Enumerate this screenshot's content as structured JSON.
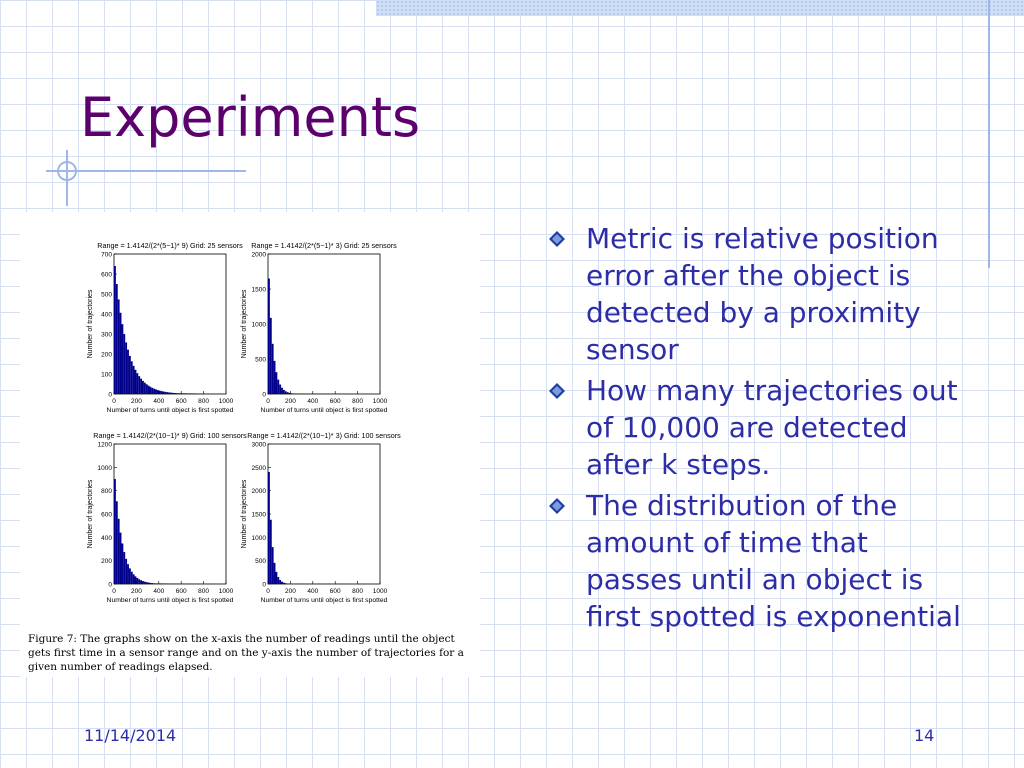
{
  "slide": {
    "title": "Experiments",
    "bullets": [
      "Metric is relative position error after the object is detected by a proximity sensor",
      "How many trajectories out of 10,000 are detected after k steps.",
      "The distribution of the amount of time that passes until an object is first spotted is exponential"
    ],
    "date": "11/14/2014",
    "page_number": "14",
    "colors": {
      "title": "#5c006c",
      "text": "#2d2da8",
      "bars": "#00008b",
      "grid_lines": "#d7dff2"
    }
  },
  "figure": {
    "caption": "Figure 7: The graphs show on the x-axis the number of readings until the object gets first time in a sensor range and on the y-axis the number of trajectories for a given number of readings elapsed."
  },
  "chart_data": [
    {
      "type": "bar",
      "title": "Range = 1.4142/(2*(5−1)* 9) Grid: 25 sensors",
      "xlabel": "Number of turns until object is first spotted",
      "ylabel": "Number of trajectories",
      "xlim": [
        0,
        1000
      ],
      "ylim": [
        0,
        700
      ],
      "xticks": [
        "0",
        "200",
        "400",
        "600",
        "800",
        "1000"
      ],
      "yticks": [
        "0",
        "100",
        "200",
        "300",
        "400",
        "500",
        "600",
        "700"
      ],
      "series": [
        {
          "peak": 640,
          "decay_turns": 110,
          "tail": 8
        }
      ]
    },
    {
      "type": "bar",
      "title": "Range = 1.4142/(2*(5−1)* 3) Grid: 25 sensors",
      "xlabel": "Number of turns until object is first spotted",
      "ylabel": "Number of trajectories",
      "xlim": [
        0,
        1000
      ],
      "ylim": [
        0,
        2000
      ],
      "xticks": [
        "0",
        "200",
        "400",
        "600",
        "800",
        "1000"
      ],
      "yticks": [
        "0",
        "500",
        "1000",
        "1500",
        "2000"
      ],
      "series": [
        {
          "peak": 1650,
          "decay_turns": 40,
          "tail": 10
        }
      ]
    },
    {
      "type": "bar",
      "title": "Range = 1.4142/(2*(10−1)* 9) Grid: 100 sensors",
      "xlabel": "Number of turns until object is first spotted",
      "ylabel": "Number of trajectories",
      "xlim": [
        0,
        1000
      ],
      "ylim": [
        0,
        1200
      ],
      "xticks": [
        "0",
        "200",
        "400",
        "600",
        "800",
        "1000"
      ],
      "yticks": [
        "0",
        "200",
        "400",
        "600",
        "800",
        "1000",
        "1200"
      ],
      "series": [
        {
          "peak": 900,
          "decay_turns": 70,
          "tail": 8
        }
      ]
    },
    {
      "type": "bar",
      "title": "Range = 1.4142/(2*(10−1)* 3) Grid: 100 sensors",
      "xlabel": "Number of turns until object is first spotted",
      "ylabel": "Number of trajectories",
      "xlim": [
        0,
        1000
      ],
      "ylim": [
        0,
        3000
      ],
      "xticks": [
        "0",
        "200",
        "400",
        "600",
        "800",
        "1000"
      ],
      "yticks": [
        "0",
        "500",
        "1000",
        "1500",
        "2000",
        "2500",
        "3000"
      ],
      "series": [
        {
          "peak": 2400,
          "decay_turns": 30,
          "tail": 10
        }
      ]
    }
  ]
}
